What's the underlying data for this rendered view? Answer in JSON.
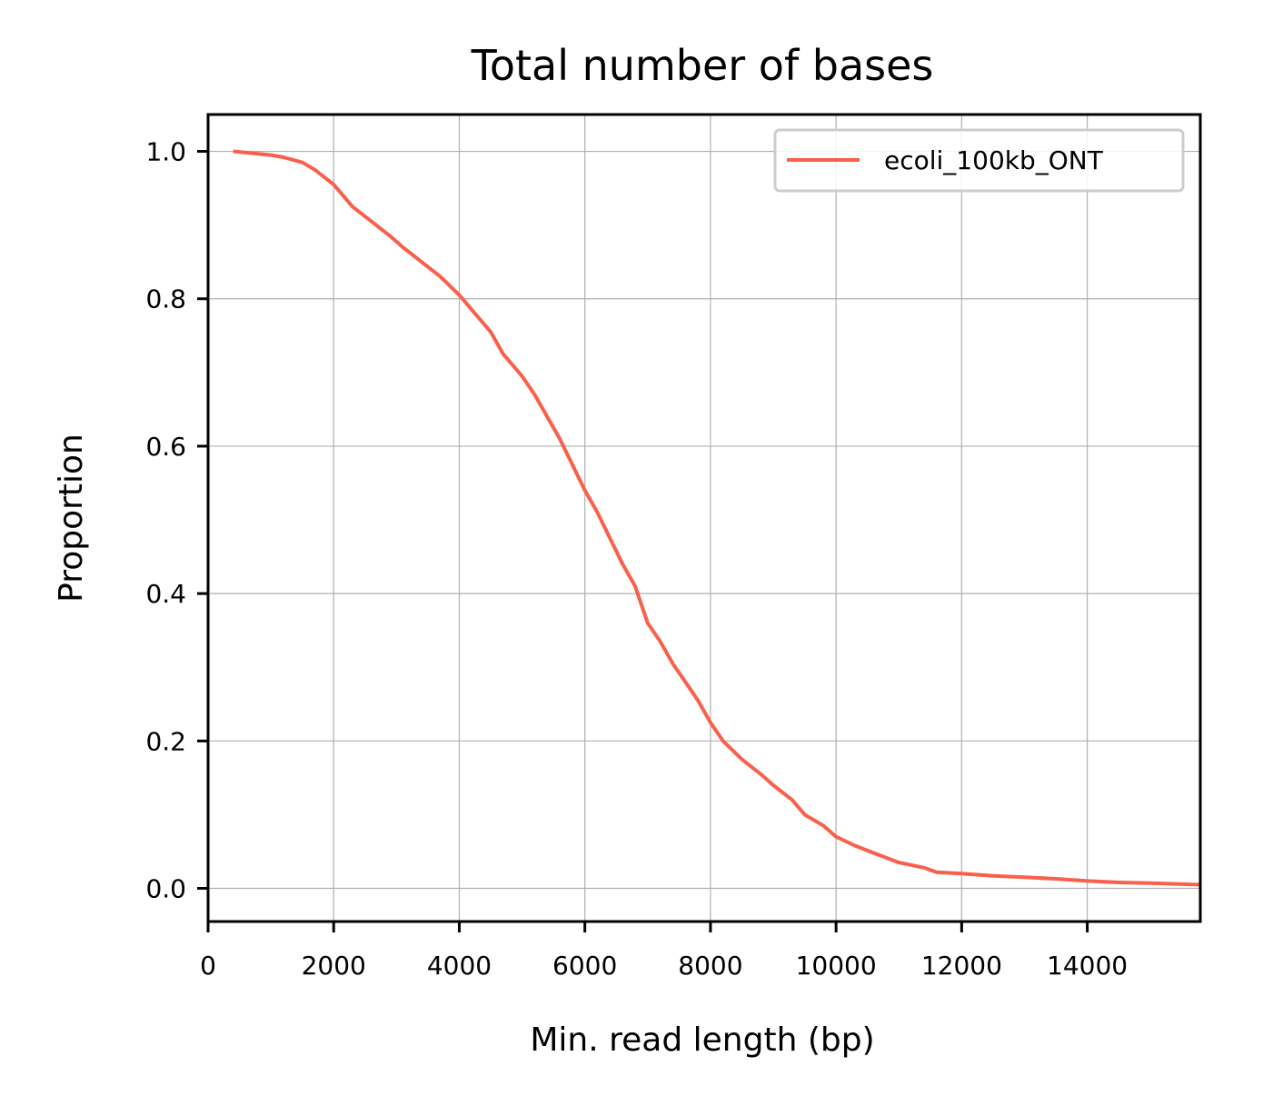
{
  "chart_data": {
    "type": "line",
    "title": "Total number of bases",
    "xlabel": "Min. read length (bp)",
    "ylabel": "Proportion",
    "xlim": [
      0,
      15800
    ],
    "ylim": [
      -0.045,
      1.05
    ],
    "x_ticks": [
      {
        "value": 0,
        "label": "0"
      },
      {
        "value": 2000,
        "label": "2000"
      },
      {
        "value": 4000,
        "label": "4000"
      },
      {
        "value": 6000,
        "label": "6000"
      },
      {
        "value": 8000,
        "label": "8000"
      },
      {
        "value": 10000,
        "label": "10000"
      },
      {
        "value": 12000,
        "label": "12000"
      },
      {
        "value": 14000,
        "label": "14000"
      }
    ],
    "y_ticks": [
      {
        "value": 0.0,
        "label": "0.0"
      },
      {
        "value": 0.2,
        "label": "0.2"
      },
      {
        "value": 0.4,
        "label": "0.4"
      },
      {
        "value": 0.6,
        "label": "0.6"
      },
      {
        "value": 0.8,
        "label": "0.8"
      },
      {
        "value": 1.0,
        "label": "1.0"
      }
    ],
    "grid": true,
    "legend_position": "top-right",
    "series": [
      {
        "name": "ecoli_100kb_ONT",
        "color": "#f8604c",
        "x": [
          400,
          1000,
          1200,
          1500,
          1700,
          2000,
          2300,
          2600,
          2900,
          3100,
          3400,
          3700,
          4000,
          4200,
          4500,
          4700,
          5000,
          5200,
          5400,
          5600,
          5800,
          6000,
          6200,
          6400,
          6600,
          6800,
          6900,
          7000,
          7200,
          7400,
          7600,
          7800,
          8000,
          8200,
          8500,
          8800,
          9000,
          9300,
          9500,
          9800,
          10000,
          10300,
          10600,
          11000,
          11400,
          11600,
          12000,
          12500,
          13000,
          13500,
          14000,
          14500,
          15000,
          15800
        ],
        "y": [
          1.0,
          0.995,
          0.992,
          0.985,
          0.975,
          0.955,
          0.925,
          0.905,
          0.885,
          0.87,
          0.85,
          0.83,
          0.805,
          0.785,
          0.755,
          0.725,
          0.695,
          0.67,
          0.64,
          0.61,
          0.575,
          0.54,
          0.51,
          0.475,
          0.44,
          0.41,
          0.385,
          0.36,
          0.335,
          0.305,
          0.28,
          0.255,
          0.225,
          0.2,
          0.175,
          0.155,
          0.14,
          0.12,
          0.1,
          0.085,
          0.07,
          0.058,
          0.048,
          0.035,
          0.028,
          0.022,
          0.02,
          0.017,
          0.015,
          0.013,
          0.01,
          0.008,
          0.007,
          0.005
        ]
      }
    ]
  }
}
